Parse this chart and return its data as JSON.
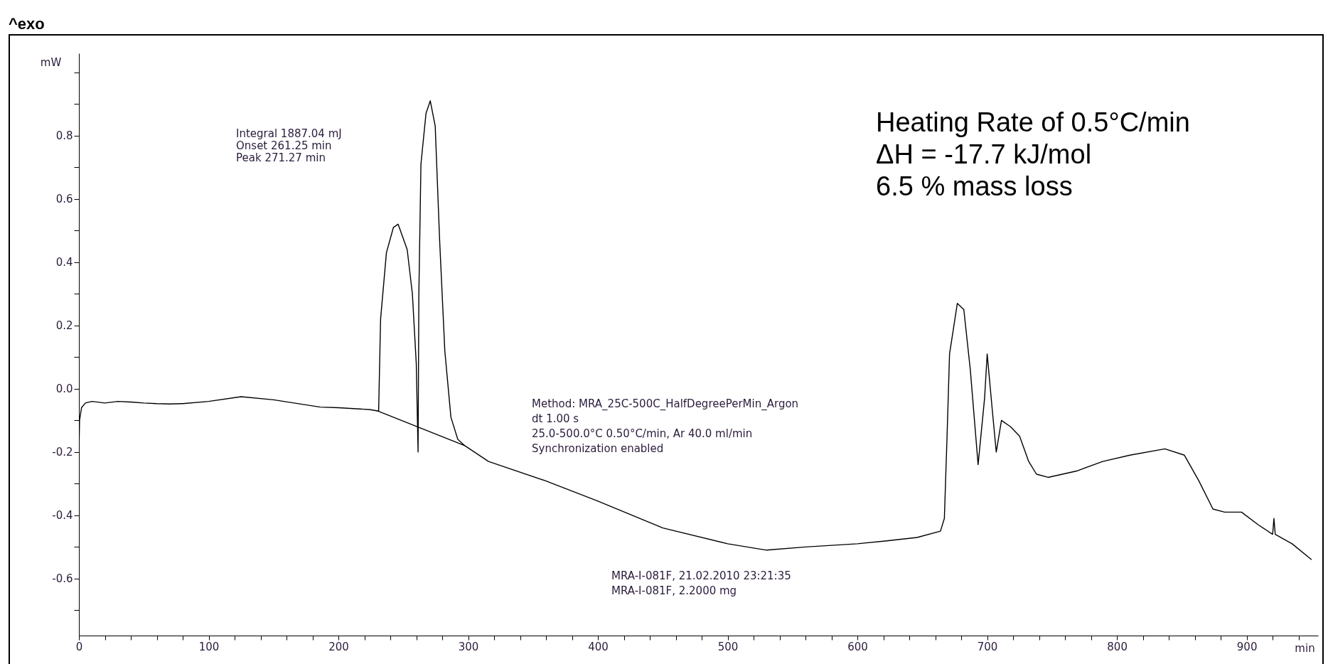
{
  "chart_data": {
    "type": "line",
    "xlabel": "min",
    "ylabel": "mW",
    "xlim": [
      0,
      955
    ],
    "ylim": [
      -0.78,
      1.06
    ],
    "xticks": [
      0,
      {
        "value": 20,
        "label": null
      },
      {
        "value": 40,
        "label": null
      },
      {
        "value": 60,
        "label": null
      },
      {
        "value": 80,
        "label": null
      },
      100,
      {
        "value": 120,
        "label": null
      },
      {
        "value": 140,
        "label": null
      },
      {
        "value": 160,
        "label": null
      },
      {
        "value": 180,
        "label": null
      },
      200,
      {
        "value": 220,
        "label": null
      },
      {
        "value": 240,
        "label": null
      },
      {
        "value": 260,
        "label": null
      },
      {
        "value": 280,
        "label": null
      },
      300,
      {
        "value": 320,
        "label": null
      },
      {
        "value": 340,
        "label": null
      },
      {
        "value": 360,
        "label": null
      },
      {
        "value": 380,
        "label": null
      },
      400,
      {
        "value": 420,
        "label": null
      },
      {
        "value": 440,
        "label": null
      },
      {
        "value": 460,
        "label": null
      },
      {
        "value": 480,
        "label": null
      },
      500,
      {
        "value": 520,
        "label": null
      },
      {
        "value": 540,
        "label": null
      },
      {
        "value": 560,
        "label": null
      },
      {
        "value": 580,
        "label": null
      },
      600,
      {
        "value": 620,
        "label": null
      },
      {
        "value": 640,
        "label": null
      },
      {
        "value": 660,
        "label": null
      },
      {
        "value": 680,
        "label": null
      },
      700,
      {
        "value": 720,
        "label": null
      },
      {
        "value": 740,
        "label": null
      },
      {
        "value": 760,
        "label": null
      },
      {
        "value": 780,
        "label": null
      },
      800,
      {
        "value": 820,
        "label": null
      },
      {
        "value": 840,
        "label": null
      },
      {
        "value": 860,
        "label": null
      },
      {
        "value": 880,
        "label": null
      },
      900,
      {
        "value": 920,
        "label": null
      },
      {
        "value": 940,
        "label": null
      }
    ],
    "yticks": [
      {
        "value": 1.0,
        "label": null
      },
      {
        "value": 0.9,
        "label": null
      },
      0.8,
      {
        "value": 0.7,
        "label": null
      },
      0.6,
      {
        "value": 0.5,
        "label": null
      },
      0.4,
      {
        "value": 0.3,
        "label": null
      },
      0.2,
      {
        "value": 0.1,
        "label": null
      },
      {
        "value": 0,
        "label": "0.0"
      },
      {
        "value": -0.1,
        "label": null
      },
      -0.2,
      {
        "value": -0.3,
        "label": null
      },
      -0.4,
      {
        "value": -0.5,
        "label": null
      },
      -0.6,
      {
        "value": -0.7,
        "label": null
      }
    ],
    "series": [
      {
        "color": "#000000",
        "x": [
          0,
          0.5,
          2,
          5,
          10,
          20,
          30,
          40,
          50,
          60,
          70,
          80,
          100,
          125,
          150,
          186,
          200,
          224.7,
          230,
          231,
          232.5,
          237,
          242.4,
          246,
          253,
          257,
          260,
          261.4,
          262,
          263.6,
          267.5,
          270.8,
          274.6,
          278,
          282,
          286.7,
          292,
          297.4,
          315.7,
          359,
          400,
          450,
          500,
          530,
          560,
          600,
          624,
          646,
          664,
          667,
          669,
          671,
          677,
          682,
          687,
          693,
          698,
          700,
          704,
          707,
          711,
          718,
          725,
          732,
          738,
          747,
          769,
          789,
          810,
          837,
          852,
          863,
          874,
          883,
          896,
          909,
          920,
          921,
          922,
          935,
          950
        ],
        "values": [
          -0.2,
          -0.1,
          -0.06,
          -0.045,
          -0.04,
          -0.045,
          -0.04,
          -0.042,
          -0.045,
          -0.047,
          -0.048,
          -0.047,
          -0.04,
          -0.025,
          -0.035,
          -0.058,
          -0.06,
          -0.066,
          -0.07,
          -0.07,
          0.22,
          0.43,
          0.51,
          0.52,
          0.44,
          0.3,
          0.08,
          -0.2,
          0.3,
          0.71,
          0.87,
          0.91,
          0.83,
          0.47,
          0.12,
          -0.09,
          -0.16,
          -0.18,
          -0.23,
          -0.29,
          -0.355,
          -0.44,
          -0.49,
          -0.51,
          -0.5,
          -0.49,
          -0.48,
          -0.47,
          -0.45,
          -0.41,
          -0.16,
          0.11,
          0.27,
          0.25,
          0.06,
          -0.24,
          -0.03,
          0.11,
          -0.07,
          -0.2,
          -0.1,
          -0.12,
          -0.15,
          -0.23,
          -0.27,
          -0.28,
          -0.26,
          -0.23,
          -0.21,
          -0.19,
          -0.21,
          -0.29,
          -0.38,
          -0.39,
          -0.39,
          -0.43,
          -0.46,
          -0.41,
          -0.46,
          -0.49,
          -0.54
        ]
      },
      {
        "color": "#000000",
        "x": [
          230,
          297.4
        ],
        "values": [
          -0.07,
          -0.18
        ]
      }
    ],
    "annotations": [
      "^exo",
      "Integral 1887.04 mJ\nOnset 261.25 min\nPeak 271.27 min",
      "Method: MRA_25C-500C_HalfDegreePerMin_Argon\ndt 1.00 s\n25.0-500.0°C 0.50°C/min, Ar 40.0 ml/min\nSynchronization enabled",
      "MRA-I-081F, 21.02.2010 23:21:35\nMRA-I-081F, 2.2000 mg",
      "Heating Rate of 0.5°C/min\nΔH = -17.7 kJ/mol\n6.5 % mass loss"
    ]
  }
}
